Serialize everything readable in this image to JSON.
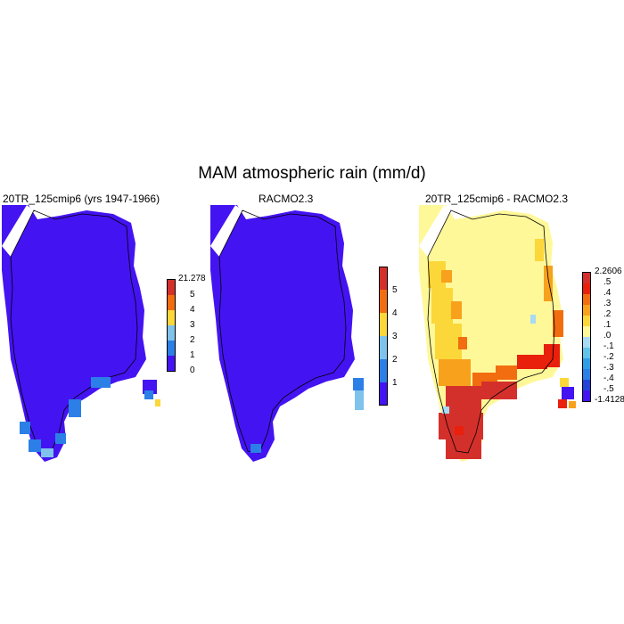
{
  "title": "MAM atmospheric rain (mm/d)",
  "panels": [
    {
      "title": "20TR_125cmip6 (yrs 1947-1966)",
      "colorbar": {
        "labels": [
          "21.278",
          "5",
          "4",
          "3",
          "2",
          "1",
          "0"
        ],
        "colors": [
          "#d4302b",
          "#f26d0f",
          "#fcd739",
          "#7fc2ec",
          "#2c7fe6",
          "#4413f2"
        ]
      }
    },
    {
      "title": "RACMO2.3",
      "colorbar": {
        "labels": [
          "5",
          "4",
          "3",
          "2",
          "1"
        ],
        "colors": [
          "#d4302b",
          "#f26d0f",
          "#fcd739",
          "#7fc2ec",
          "#2c7fe6",
          "#4413f2"
        ]
      }
    },
    {
      "title": "20TR_125cmip6 - RACMO2.3",
      "colorbar": {
        "labels": [
          "2.2606",
          ".5",
          ".4",
          ".3",
          ".2",
          ".1",
          ".0",
          "-.1",
          "-.2",
          "-.3",
          "-.4",
          "-.5",
          "-1.4128"
        ],
        "colors": [
          "#d4302b",
          "#e8200c",
          "#f26d0f",
          "#f7a11c",
          "#fcd739",
          "#fff899",
          "#a7daf5",
          "#61c2ea",
          "#2c9fe6",
          "#2c7fe6",
          "#2443d9",
          "#4413f2"
        ]
      }
    }
  ],
  "colors": {
    "base_blue": "#4413f2",
    "light_yellow": "#fff899",
    "coast": "#000000"
  }
}
